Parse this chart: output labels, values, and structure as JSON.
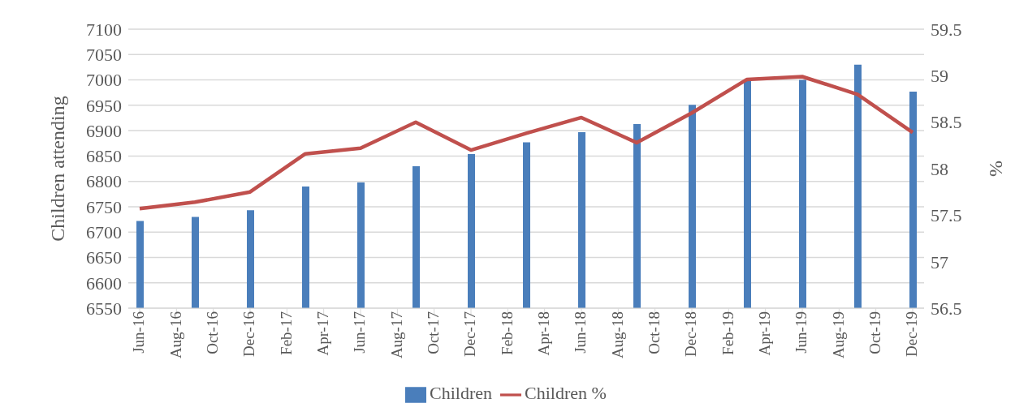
{
  "chart_data": {
    "type": "bar",
    "x": [
      "2016-06",
      "2016-09",
      "2016-12",
      "2017-03",
      "2017-06",
      "2017-09",
      "2017-12",
      "2018-03",
      "2018-06",
      "2018-09",
      "2018-12",
      "2019-03",
      "2019-06",
      "2019-09",
      "2019-12"
    ],
    "series": [
      {
        "name": "Children",
        "color": "#4a7ebb",
        "values": [
          6722,
          6730,
          6743,
          6790,
          6798,
          6830,
          6854,
          6877,
          6897,
          6913,
          6951,
          6999,
          7000,
          7030,
          6977
        ]
      },
      {
        "name": "Children %",
        "type": "line",
        "axis": "y2",
        "color": "#c0504d",
        "values": [
          57.57,
          57.64,
          57.75,
          58.16,
          58.22,
          58.5,
          58.2,
          58.38,
          58.55,
          58.28,
          58.6,
          58.96,
          58.99,
          58.8,
          58.39
        ]
      }
    ],
    "ylabel": "Children attending",
    "y2label": "%",
    "xlim": [
      "2016-06",
      "2019-12"
    ],
    "xticks": [
      {
        "value": "2016-06",
        "label": "Jun-16"
      },
      {
        "value": "2016-08",
        "label": "Aug-16"
      },
      {
        "value": "2016-10",
        "label": "Oct-16"
      },
      {
        "value": "2016-12",
        "label": "Dec-16"
      },
      {
        "value": "2017-02",
        "label": "Feb-17"
      },
      {
        "value": "2017-04",
        "label": "Apr-17"
      },
      {
        "value": "2017-06",
        "label": "Jun-17"
      },
      {
        "value": "2017-08",
        "label": "Aug-17"
      },
      {
        "value": "2017-10",
        "label": "Oct-17"
      },
      {
        "value": "2017-12",
        "label": "Dec-17"
      },
      {
        "value": "2018-02",
        "label": "Feb-18"
      },
      {
        "value": "2018-04",
        "label": "Apr-18"
      },
      {
        "value": "2018-06",
        "label": "Jun-18"
      },
      {
        "value": "2018-08",
        "label": "Aug-18"
      },
      {
        "value": "2018-10",
        "label": "Oct-18"
      },
      {
        "value": "2018-12",
        "label": "Dec-18"
      },
      {
        "value": "2019-02",
        "label": "Feb-19"
      },
      {
        "value": "2019-04",
        "label": "Apr-19"
      },
      {
        "value": "2019-06",
        "label": "Jun-19"
      },
      {
        "value": "2019-08",
        "label": "Aug-19"
      },
      {
        "value": "2019-10",
        "label": "Oct-19"
      },
      {
        "value": "2019-12",
        "label": "Dec-19"
      }
    ],
    "ylim": [
      6550,
      7100
    ],
    "yticks": [
      6550,
      6600,
      6650,
      6700,
      6750,
      6800,
      6850,
      6900,
      6950,
      7000,
      7050,
      7100
    ],
    "y2lim": [
      56.5,
      59.5
    ],
    "y2ticks": [
      56.5,
      57,
      57.5,
      58,
      58.5,
      59,
      59.5
    ],
    "grid": "y",
    "legend": "bottom",
    "marker": "none"
  }
}
